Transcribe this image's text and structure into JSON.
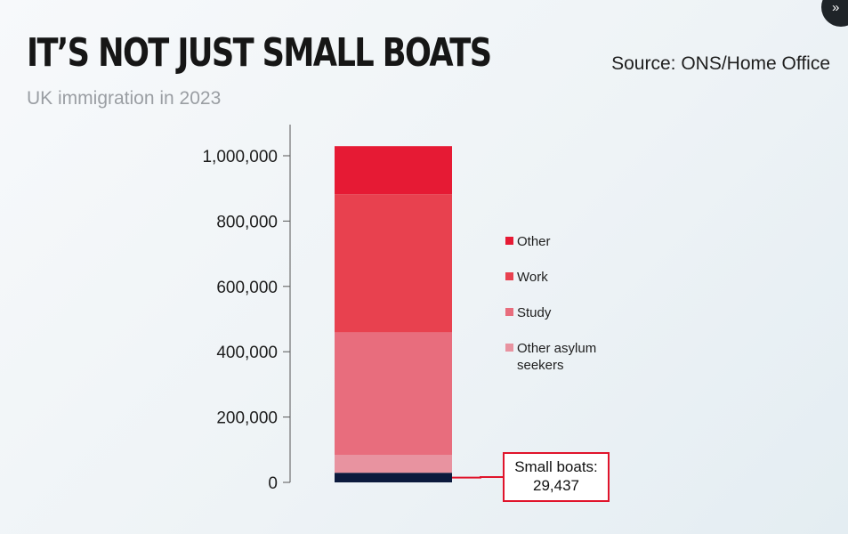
{
  "header": {
    "title": "IT’S NOT JUST SMALL BOATS",
    "subtitle": "UK immigration in 2023",
    "source": "Source: ONS/Home Office"
  },
  "chart_data": {
    "type": "bar",
    "stacked": true,
    "categories": [
      "UK immigration in 2023"
    ],
    "series": [
      {
        "name": "Small boats",
        "values": [
          29437
        ],
        "color": "#0c1a3d"
      },
      {
        "name": "Other asylum seekers",
        "values": [
          55000
        ],
        "color": "#e893a0"
      },
      {
        "name": "Study",
        "values": [
          375000
        ],
        "color": "#e86d7d"
      },
      {
        "name": "Work",
        "values": [
          423000
        ],
        "color": "#e8414f"
      },
      {
        "name": "Other",
        "values": [
          147000
        ],
        "color": "#e61a34"
      }
    ],
    "ylim": [
      0,
      1000000
    ],
    "yticks": [
      0,
      200000,
      400000,
      600000,
      800000,
      1000000
    ],
    "ytick_labels": [
      "0",
      "200,000",
      "400,000",
      "600,000",
      "800,000",
      "1,000,000"
    ],
    "grid": false,
    "legend_position": "right",
    "legend": [
      "Other",
      "Work",
      "Study",
      "Other asylum seekers"
    ],
    "annotation": {
      "label": "Small boats:",
      "value": "29,437",
      "color": "#e0142b"
    }
  }
}
